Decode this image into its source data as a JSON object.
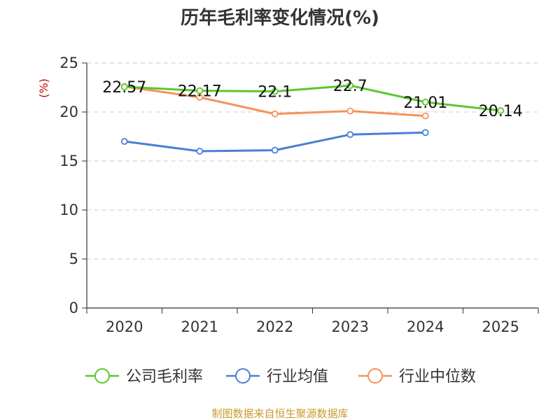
{
  "chart_data": {
    "type": "line",
    "title": "历年毛利率变化情况(%)",
    "ylabel": "(%)",
    "categories": [
      "2020",
      "2021",
      "2022",
      "2023",
      "2024",
      "2025"
    ],
    "ylim": [
      0,
      25
    ],
    "yticks": [
      0,
      5,
      10,
      15,
      20,
      25
    ],
    "grid": "horizontal-dashed",
    "legend_position": "bottom",
    "series": [
      {
        "name": "公司毛利率",
        "color": "#5cc72c",
        "values": [
          22.57,
          22.17,
          22.1,
          22.7,
          21.01,
          20.14
        ],
        "labels": [
          "22.57",
          "22.17",
          "22.1",
          "22.7",
          "21.01",
          "20.14"
        ]
      },
      {
        "name": "行业均值",
        "color": "#4a7fd6",
        "values": [
          17.0,
          16.0,
          16.1,
          17.7,
          17.9,
          null
        ],
        "labels": []
      },
      {
        "name": "行业中位数",
        "color": "#f5935a",
        "values": [
          22.6,
          21.5,
          19.8,
          20.1,
          19.6,
          null
        ],
        "labels": []
      }
    ],
    "source": "制图数据来自恒生聚源数据库"
  }
}
